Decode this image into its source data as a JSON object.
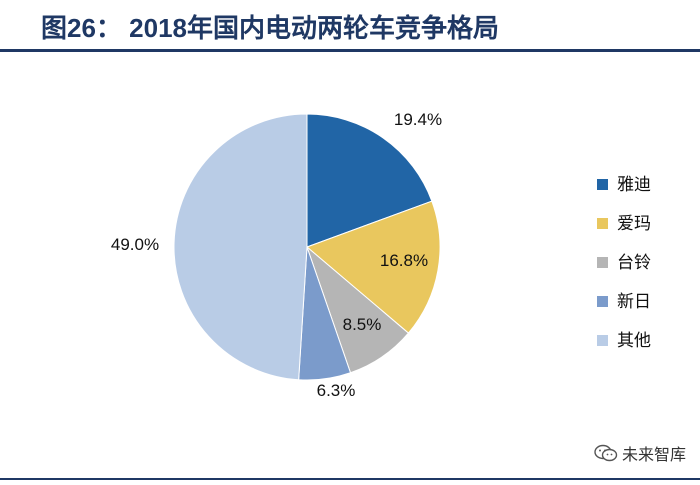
{
  "header": {
    "title": "图26：  2018年国内电动两轮车竞争格局"
  },
  "watermark": {
    "text": "未来智库"
  },
  "chart_data": {
    "type": "pie",
    "title": "",
    "categories": [
      "雅迪",
      "爱玛",
      "台铃",
      "新日",
      "其他"
    ],
    "values": [
      19.4,
      16.8,
      8.5,
      6.3,
      49.0
    ],
    "labels": [
      "19.4%",
      "16.8%",
      "8.5%",
      "6.3%",
      "49.0%"
    ],
    "colors": [
      "#2165a6",
      "#e9c75e",
      "#b5b5b5",
      "#7b9bcb",
      "#b9cce6"
    ],
    "legend_position": "right",
    "start_angle": "12-o'clock",
    "direction": "clockwise"
  }
}
